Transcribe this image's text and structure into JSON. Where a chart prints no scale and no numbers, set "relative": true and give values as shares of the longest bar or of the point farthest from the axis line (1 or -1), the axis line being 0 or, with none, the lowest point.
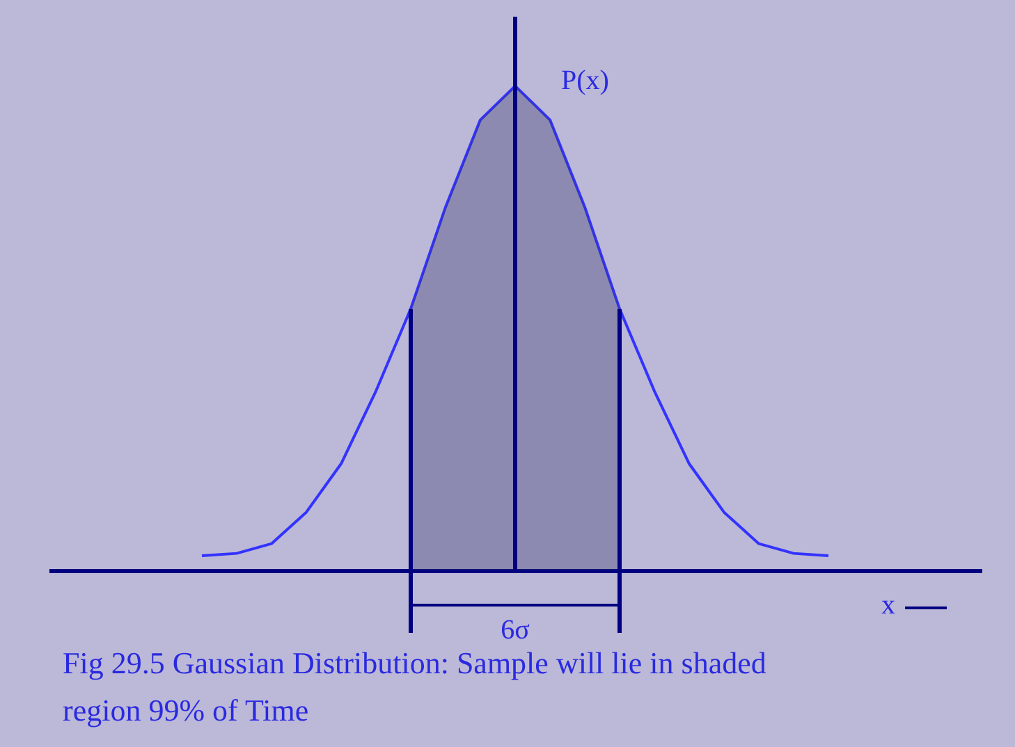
{
  "chart_data": {
    "type": "line",
    "relative": true,
    "categories": [
      null,
      null,
      null,
      null,
      null,
      null,
      null,
      null,
      null,
      null,
      null,
      null,
      null,
      null,
      null,
      null,
      null,
      null,
      null
    ],
    "ylabel": "P(x)",
    "xlabel": "x",
    "series": [
      {
        "color": "#3333ff",
        "values": [
          0.03,
          0.035,
          0.055,
          0.12,
          0.22,
          0.37,
          0.54,
          0.75,
          0.93,
          1,
          0.93,
          0.75,
          0.54,
          0.37,
          0.22,
          0.12,
          0.055,
          0.035,
          0.03
        ]
      },
      {
        "type": "area",
        "color": "#333366",
        "values": [
          null,
          null,
          null,
          null,
          null,
          null,
          0.54,
          0.75,
          0.93,
          1,
          0.93,
          0.75,
          0.54,
          null,
          null,
          null,
          null,
          null,
          null
        ]
      }
    ],
    "annotations": [
      "6σ",
      "Fig 29.5 Gaussian Distribution: Sample will lie in shaded region 99% of Time"
    ],
    "marker": "none",
    "line_style": "solid"
  }
}
